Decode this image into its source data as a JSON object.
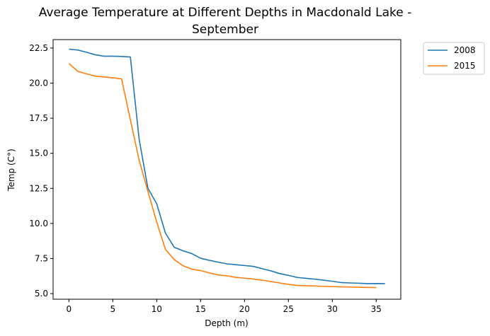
{
  "chart_data": {
    "type": "line",
    "title_line1": "Average Temperature at Different Depths in Macdonald Lake -",
    "title_line2": "September",
    "xlabel": "Depth (m)",
    "ylabel": "Temp (C°)",
    "xlim": [
      -1.8,
      37.8
    ],
    "ylim": [
      4.6,
      23.1
    ],
    "xticks": [
      0,
      5,
      10,
      15,
      20,
      25,
      30,
      35
    ],
    "xtick_labels": [
      "0",
      "5",
      "10",
      "15",
      "20",
      "25",
      "30",
      "35"
    ],
    "yticks": [
      5.0,
      7.5,
      10.0,
      12.5,
      15.0,
      17.5,
      20.0,
      22.5
    ],
    "ytick_labels": [
      "5.0",
      "7.5",
      "10.0",
      "12.5",
      "15.0",
      "17.5",
      "20.0",
      "22.5"
    ],
    "legend_position": "outside-upper-right",
    "series": [
      {
        "name": "2008",
        "color": "#1f77b4",
        "x": [
          0,
          1,
          2,
          3,
          4,
          5,
          6,
          7,
          8,
          9,
          10,
          11,
          12,
          13,
          14,
          15,
          16,
          17,
          18,
          19,
          20,
          21,
          22,
          23,
          24,
          25,
          26,
          27,
          28,
          29,
          30,
          31,
          32,
          33,
          34,
          35,
          36
        ],
        "y": [
          22.42,
          22.36,
          22.2,
          22.02,
          21.92,
          21.92,
          21.9,
          21.86,
          16.0,
          12.5,
          11.4,
          9.3,
          8.3,
          8.05,
          7.85,
          7.52,
          7.37,
          7.24,
          7.12,
          7.06,
          7.0,
          6.94,
          6.78,
          6.62,
          6.43,
          6.3,
          6.15,
          6.09,
          6.03,
          5.96,
          5.88,
          5.79,
          5.76,
          5.74,
          5.71,
          5.72,
          5.71
        ]
      },
      {
        "name": "2015",
        "color": "#ff7f0e",
        "x": [
          0,
          1,
          2,
          3,
          4,
          5,
          6,
          7,
          8,
          9,
          10,
          11,
          12,
          13,
          14,
          15,
          16,
          17,
          18,
          19,
          20,
          21,
          22,
          23,
          24,
          25,
          26,
          27,
          28,
          29,
          30,
          31,
          32,
          33,
          34,
          35
        ],
        "y": [
          21.4,
          20.84,
          20.66,
          20.5,
          20.44,
          20.38,
          20.3,
          17.4,
          14.5,
          12.28,
          10.1,
          8.14,
          7.42,
          6.98,
          6.74,
          6.64,
          6.47,
          6.33,
          6.27,
          6.16,
          6.1,
          6.04,
          5.96,
          5.86,
          5.76,
          5.66,
          5.58,
          5.56,
          5.54,
          5.52,
          5.5,
          5.48,
          5.47,
          5.45,
          5.44,
          5.43
        ]
      }
    ]
  }
}
